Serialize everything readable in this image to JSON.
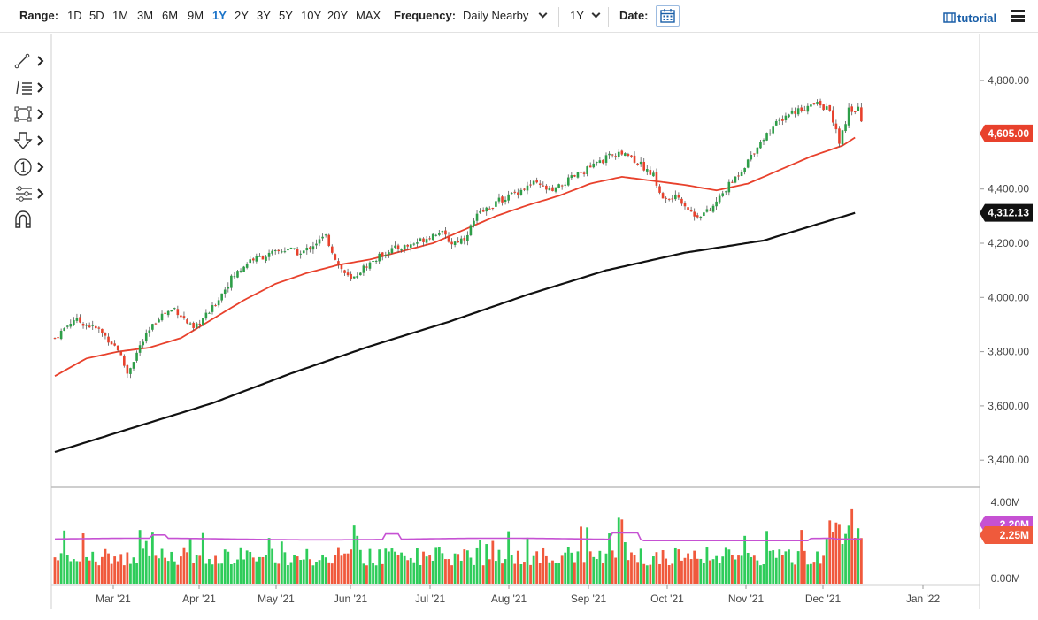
{
  "toolbar": {
    "range_label": "Range:",
    "ranges": [
      "1D",
      "5D",
      "1M",
      "3M",
      "6M",
      "9M",
      "1Y",
      "2Y",
      "3Y",
      "5Y",
      "10Y",
      "20Y",
      "MAX"
    ],
    "active_range": "1Y",
    "frequency_label": "Frequency:",
    "frequency_value": "Daily Nearby",
    "period_value": "1Y",
    "date_label": "Date:",
    "tutorial_label": "tutorial"
  },
  "tools": [
    {
      "icon": "trendline-icon"
    },
    {
      "icon": "fibonacci-icon"
    },
    {
      "icon": "rectangle-icon"
    },
    {
      "icon": "arrow-down-icon"
    },
    {
      "icon": "number-marker-icon"
    },
    {
      "icon": "settings-sliders-icon"
    },
    {
      "icon": "magnet-icon"
    }
  ],
  "chart_data": {
    "type": "candlestick",
    "price_axis": {
      "ticks": [
        3400,
        3600,
        3800,
        4000,
        4200,
        4400,
        4600,
        4800
      ],
      "tick_labels": [
        "3,400.00",
        "3,600.00",
        "3,800.00",
        "4,000.00",
        "4,200.00",
        "4,400.00",
        "4,600.00",
        "4,800.00"
      ],
      "range": [
        3320,
        4950
      ]
    },
    "volume_axis": {
      "tick_labels": [
        "0.00M",
        "2.20M",
        "4.00M"
      ],
      "range": [
        0,
        4.4
      ]
    },
    "time_axis": {
      "labels": [
        "Mar '21",
        "Apr '21",
        "May '21",
        "Jun '21",
        "Jul '21",
        "Aug '21",
        "Sep '21",
        "Oct '21",
        "Nov '21",
        "Dec '21",
        "Jan '22"
      ]
    },
    "last_price": {
      "value": 4605.0,
      "label": "4,605.00",
      "color": "#e8412c"
    },
    "ma200_last": {
      "value": 4312.13,
      "label": "4,312.13",
      "color": "#111111"
    },
    "volume_avg_last": {
      "value": 2.2,
      "label": "2.20M",
      "color": "#c651d3"
    },
    "volume_last": {
      "value": 2.25,
      "label": "2.25M",
      "color": "#ef5a3c"
    },
    "colors": {
      "up": "#2e9e48",
      "down": "#e8412c",
      "ma50": "#e8412c",
      "ma200": "#111111",
      "volume_avg": "#c651d3"
    },
    "ma50_anchors": [
      [
        0,
        3710
      ],
      [
        10,
        3775
      ],
      [
        20,
        3800
      ],
      [
        30,
        3815
      ],
      [
        40,
        3850
      ],
      [
        50,
        3920
      ],
      [
        60,
        3990
      ],
      [
        70,
        4050
      ],
      [
        80,
        4090
      ],
      [
        90,
        4120
      ],
      [
        100,
        4140
      ],
      [
        110,
        4170
      ],
      [
        120,
        4200
      ],
      [
        130,
        4250
      ],
      [
        140,
        4300
      ],
      [
        150,
        4340
      ],
      [
        160,
        4375
      ],
      [
        170,
        4420
      ],
      [
        180,
        4445
      ],
      [
        190,
        4430
      ],
      [
        200,
        4415
      ],
      [
        210,
        4395
      ],
      [
        220,
        4420
      ],
      [
        230,
        4470
      ],
      [
        240,
        4520
      ],
      [
        250,
        4560
      ],
      [
        254,
        4590
      ]
    ],
    "ma200_anchors": [
      [
        0,
        3430
      ],
      [
        25,
        3520
      ],
      [
        50,
        3610
      ],
      [
        75,
        3720
      ],
      [
        100,
        3820
      ],
      [
        125,
        3910
      ],
      [
        150,
        4010
      ],
      [
        175,
        4100
      ],
      [
        200,
        4165
      ],
      [
        225,
        4210
      ],
      [
        254,
        4312
      ]
    ],
    "price_anchors": [
      [
        0,
        3850
      ],
      [
        6,
        3920
      ],
      [
        14,
        3880
      ],
      [
        20,
        3810
      ],
      [
        23,
        3720
      ],
      [
        27,
        3820
      ],
      [
        33,
        3930
      ],
      [
        38,
        3960
      ],
      [
        44,
        3880
      ],
      [
        50,
        3960
      ],
      [
        56,
        4070
      ],
      [
        62,
        4140
      ],
      [
        66,
        4150
      ],
      [
        74,
        4180
      ],
      [
        78,
        4160
      ],
      [
        82,
        4195
      ],
      [
        86,
        4225
      ],
      [
        90,
        4120
      ],
      [
        94,
        4060
      ],
      [
        98,
        4110
      ],
      [
        106,
        4175
      ],
      [
        112,
        4190
      ],
      [
        118,
        4220
      ],
      [
        122,
        4245
      ],
      [
        126,
        4200
      ],
      [
        130,
        4220
      ],
      [
        134,
        4300
      ],
      [
        140,
        4350
      ],
      [
        145,
        4380
      ],
      [
        152,
        4420
      ],
      [
        158,
        4390
      ],
      [
        164,
        4440
      ],
      [
        170,
        4480
      ],
      [
        176,
        4520
      ],
      [
        181,
        4535
      ],
      [
        186,
        4490
      ],
      [
        190,
        4450
      ],
      [
        193,
        4360
      ],
      [
        198,
        4370
      ],
      [
        203,
        4300
      ],
      [
        208,
        4320
      ],
      [
        213,
        4400
      ],
      [
        218,
        4470
      ],
      [
        223,
        4560
      ],
      [
        228,
        4630
      ],
      [
        233,
        4680
      ],
      [
        238,
        4700
      ],
      [
        242,
        4715
      ],
      [
        246,
        4690
      ],
      [
        249,
        4570
      ],
      [
        252,
        4690
      ],
      [
        255,
        4700
      ],
      [
        257,
        4605
      ]
    ],
    "volume_seed": 7
  }
}
